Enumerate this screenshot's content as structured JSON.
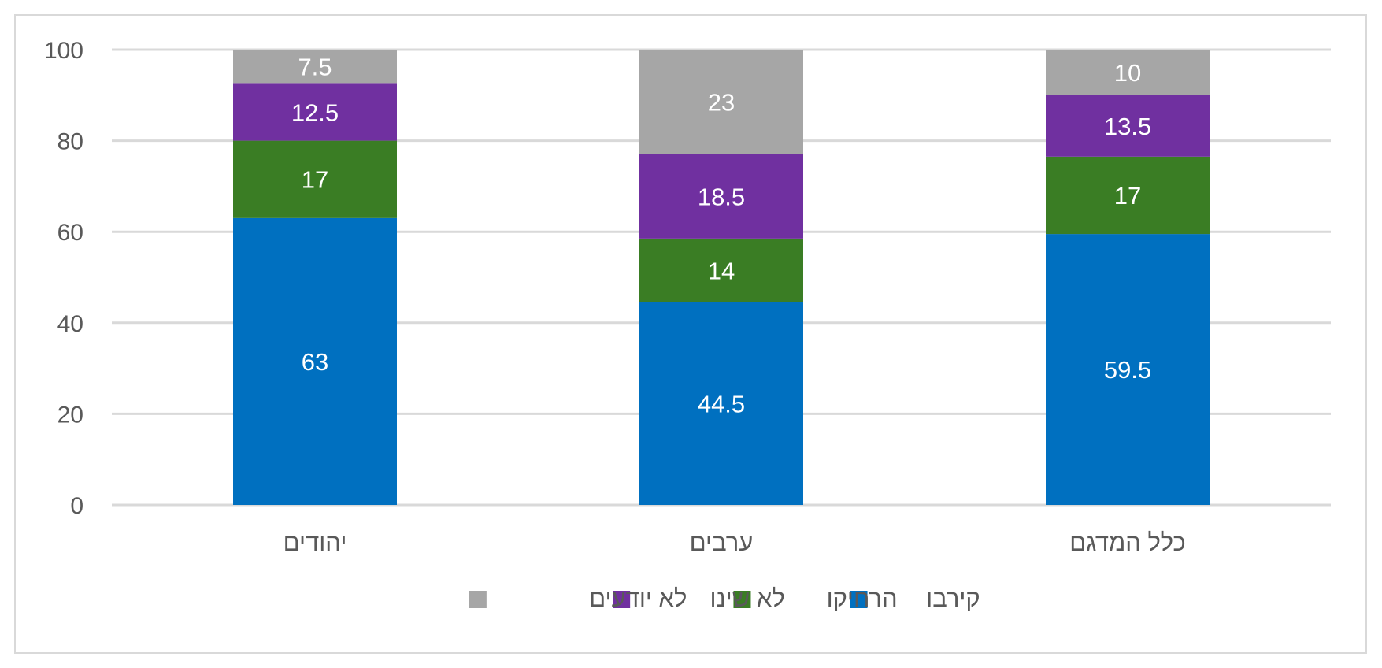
{
  "chart_data": {
    "type": "bar",
    "stacked": true,
    "categories": [
      "יהודים",
      "ערבים",
      "כלל המדגם"
    ],
    "series": [
      {
        "name": "קירבו",
        "color": "#0070c0",
        "values": [
          63,
          44.5,
          59.5
        ]
      },
      {
        "name": "הרחיקו",
        "color": "#3a7d24",
        "values": [
          17,
          14,
          17
        ]
      },
      {
        "name": "לא שינו",
        "color": "#7030a0",
        "values": [
          12.5,
          18.5,
          13.5
        ]
      },
      {
        "name": "לא יודעים",
        "color": "#a6a6a6",
        "values": [
          7.5,
          23,
          10
        ]
      }
    ],
    "ylim": [
      0,
      100
    ],
    "yticks": [
      0,
      20,
      40,
      60,
      80,
      100
    ],
    "grid": true,
    "legend_position": "bottom",
    "data_labels": true
  }
}
